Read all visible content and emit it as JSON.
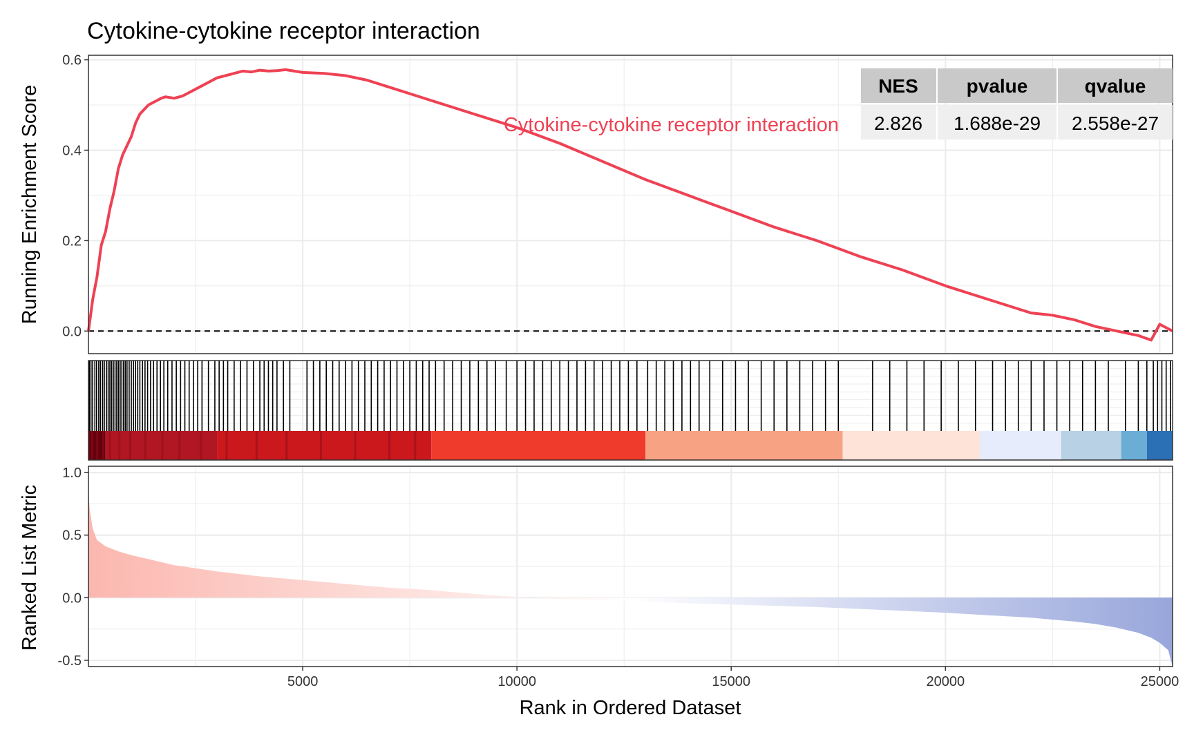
{
  "chart_data": {
    "type": "line",
    "title": "Cytokine-cytokine receptor interaction",
    "xlabel": "Rank in Ordered Dataset",
    "xlim": [
      0,
      25300
    ],
    "x_ticks": [
      "5000",
      "10000",
      "15000",
      "20000",
      "25000"
    ],
    "x_tick_values": [
      5000,
      10000,
      15000,
      20000,
      25000
    ],
    "grid": true,
    "legend_position": "top-right",
    "colors": {
      "line": "#EE4254",
      "positive_metric": "#FBB7AF",
      "negative_metric": "#98A6DB",
      "panel_border": "#333333",
      "grid": "#EBEBEB",
      "table_header": "#C9C9C9",
      "table_body": "#EFEFEF"
    },
    "enrichment": {
      "ylabel": "Running Enrichment Score",
      "ylim": [
        -0.05,
        0.61
      ],
      "y_ticks": [
        "0.0",
        "0.2",
        "0.4",
        "0.6"
      ],
      "y_tick_values": [
        0.0,
        0.2,
        0.4,
        0.6
      ],
      "reference_line": 0.0,
      "series": [
        {
          "name": "Cytokine-cytokine receptor interaction",
          "x": [
            0,
            100,
            200,
            300,
            400,
            500,
            600,
            700,
            800,
            900,
            1000,
            1100,
            1200,
            1300,
            1400,
            1500,
            1600,
            1700,
            1800,
            2000,
            2200,
            2400,
            2600,
            2800,
            3000,
            3200,
            3400,
            3600,
            3800,
            4000,
            4200,
            4400,
            4600,
            4800,
            5000,
            5500,
            6000,
            6500,
            7000,
            7500,
            8000,
            9000,
            10000,
            11000,
            12000,
            13000,
            14000,
            15000,
            16000,
            17000,
            18000,
            19000,
            20000,
            21000,
            22000,
            22500,
            23000,
            23500,
            24000,
            24500,
            24800,
            25000,
            25300
          ],
          "y": [
            0.0,
            0.07,
            0.12,
            0.19,
            0.22,
            0.27,
            0.31,
            0.36,
            0.39,
            0.41,
            0.43,
            0.46,
            0.48,
            0.49,
            0.5,
            0.505,
            0.51,
            0.515,
            0.518,
            0.515,
            0.52,
            0.53,
            0.54,
            0.55,
            0.56,
            0.565,
            0.57,
            0.575,
            0.573,
            0.577,
            0.575,
            0.576,
            0.578,
            0.575,
            0.572,
            0.57,
            0.565,
            0.555,
            0.54,
            0.525,
            0.51,
            0.48,
            0.45,
            0.415,
            0.375,
            0.335,
            0.3,
            0.265,
            0.23,
            0.2,
            0.165,
            0.135,
            0.1,
            0.07,
            0.04,
            0.035,
            0.025,
            0.01,
            0.0,
            -0.01,
            -0.02,
            0.015,
            0.0
          ]
        }
      ]
    },
    "gene_hits": [
      20,
      60,
      100,
      150,
      190,
      240,
      280,
      330,
      370,
      420,
      460,
      500,
      540,
      580,
      620,
      660,
      700,
      740,
      780,
      820,
      860,
      900,
      950,
      1000,
      1050,
      1100,
      1150,
      1200,
      1260,
      1320,
      1380,
      1450,
      1520,
      1600,
      1680,
      1760,
      1850,
      1950,
      2050,
      2150,
      2250,
      2350,
      2450,
      2550,
      2650,
      2800,
      2950,
      3050,
      3150,
      3250,
      3400,
      3550,
      3700,
      3850,
      4000,
      4100,
      4200,
      4300,
      4400,
      4550,
      4700,
      5100,
      5250,
      5400,
      5550,
      5700,
      5850,
      6000,
      6150,
      6300,
      6450,
      6600,
      6750,
      6900,
      7050,
      7200,
      7350,
      7500,
      7650,
      7800,
      7950,
      8100,
      8300,
      8500,
      8700,
      8900,
      9100,
      9300,
      9500,
      9750,
      10000,
      10200,
      10400,
      10600,
      10800,
      11000,
      11200,
      11400,
      11600,
      11800,
      12000,
      12200,
      12400,
      12600,
      12800,
      13050,
      13250,
      13450,
      13650,
      13850,
      14050,
      14250,
      14500,
      14800,
      15100,
      15400,
      15700,
      16000,
      16300,
      16600,
      16900,
      17200,
      17500,
      18300,
      18700,
      19100,
      19500,
      19900,
      20300,
      20700,
      21100,
      21400,
      21700,
      22000,
      22300,
      22600,
      22900,
      23200,
      23500,
      23800,
      24200,
      24500,
      24700,
      24850,
      24950,
      25050,
      25150,
      25250
    ],
    "heat_bands": [
      {
        "from": 0,
        "to": 400,
        "color": "#67000D"
      },
      {
        "from": 400,
        "to": 3000,
        "color": "#B11623"
      },
      {
        "from": 3000,
        "to": 8000,
        "color": "#CB181D"
      },
      {
        "from": 8000,
        "to": 13000,
        "color": "#EF3B2C"
      },
      {
        "from": 13000,
        "to": 17600,
        "color": "#F6A283"
      },
      {
        "from": 17600,
        "to": 20800,
        "color": "#FDE3D8"
      },
      {
        "from": 20800,
        "to": 22700,
        "color": "#E6ECFB"
      },
      {
        "from": 22700,
        "to": 24100,
        "color": "#B8D1E5"
      },
      {
        "from": 24100,
        "to": 24700,
        "color": "#6AAED6"
      },
      {
        "from": 24700,
        "to": 25300,
        "color": "#2B6FB4"
      }
    ],
    "metric": {
      "ylabel": "Ranked List Metric",
      "ylim": [
        -0.55,
        1.05
      ],
      "y_ticks": [
        "-0.5",
        "0.0",
        "0.5",
        "1.0"
      ],
      "y_tick_values": [
        -0.5,
        0.0,
        0.5,
        1.0
      ],
      "x": [
        0,
        30,
        100,
        200,
        400,
        700,
        1000,
        1500,
        2000,
        3000,
        4000,
        5000,
        6000,
        7000,
        8000,
        9000,
        10000,
        11000,
        12000,
        13000,
        14000,
        15000,
        16000,
        17000,
        18000,
        19000,
        20000,
        21000,
        22000,
        23000,
        23500,
        24000,
        24500,
        24800,
        25000,
        25200,
        25300
      ],
      "y": [
        0.85,
        0.7,
        0.55,
        0.46,
        0.41,
        0.37,
        0.34,
        0.3,
        0.26,
        0.21,
        0.17,
        0.14,
        0.11,
        0.08,
        0.06,
        0.03,
        0.005,
        -0.01,
        -0.02,
        -0.03,
        -0.045,
        -0.055,
        -0.065,
        -0.075,
        -0.09,
        -0.105,
        -0.12,
        -0.14,
        -0.16,
        -0.19,
        -0.21,
        -0.24,
        -0.28,
        -0.32,
        -0.36,
        -0.42,
        -0.55
      ]
    },
    "stats_table": {
      "headers": [
        "NES",
        "pvalue",
        "qvalue"
      ],
      "values": [
        "2.826",
        "1.688e-29",
        "2.558e-27"
      ]
    }
  }
}
